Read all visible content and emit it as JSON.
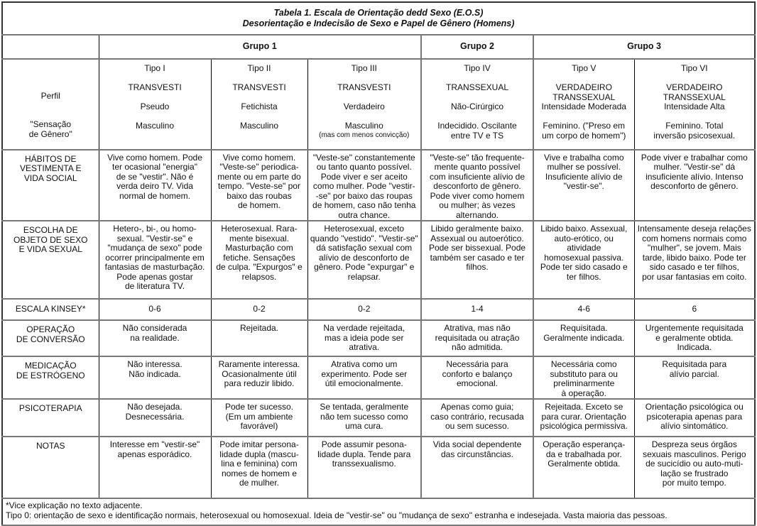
{
  "title": {
    "line1": "Tabela 1. Escala de Orientação dedd Sexo (E.O.S)",
    "line2": "Desorientação e Indecisão de Sexo e Papel de Gênero (Homens)"
  },
  "groups": [
    "Grupo 1",
    "Grupo 2",
    "Grupo 3"
  ],
  "perfil": {
    "label1": "Perfil",
    "label2": "\"Sensação\nde Gênero\"",
    "types": [
      {
        "tipo": "Tipo I",
        "name": "TRANSVESTI",
        "sub": "Pseudo",
        "sensation": "Masculino",
        "note": ""
      },
      {
        "tipo": "Tipo II",
        "name": "TRANSVESTI",
        "sub": "Fetichista",
        "sensation": "Masculino",
        "note": ""
      },
      {
        "tipo": "Tipo III",
        "name": "TRANSVESTI",
        "sub": "Verdadeiro",
        "sensation": "Masculino",
        "note": "(mas com menos convicção)"
      },
      {
        "tipo": "Tipo IV",
        "name": "TRANSSEXUAL",
        "sub": "Não-Cirúrgico",
        "sensation": "Indecidido. Oscilante\nentre TV e TS",
        "note": ""
      },
      {
        "tipo": "Tipo V",
        "name": "VERDADEIRO\nTRANSSEXUAL",
        "sub": "Intensidade Moderada",
        "sensation": "Feminino. (\"Preso em\num corpo de homem\")",
        "note": ""
      },
      {
        "tipo": "Tipo VI",
        "name": "VERDADEIRO\nTRANSSEXUAL",
        "sub": "Intensidade Alta",
        "sensation": "Feminino. Total\ninversão psicosexual.",
        "note": ""
      }
    ]
  },
  "rows": [
    {
      "label": "HÁBITOS DE\nVESTIMENTA E\nVIDA SOCIAL",
      "cells": [
        "Vive como homem. Pode\nter ocasional \"energia\"\nde se \"vestir\". Não é\nverda deiro TV. Vida\nnormal de homem.",
        "Vive como homem.\n\"Veste-se\" periodica-\nmente ou em parte do\ntempo. \"Veste-se\" por\nbaixo das roubas\nde homem.",
        "\"Veste-se\" constantemente\nou tanto quanto possível.\nPode viver e ser aceito\ncomo mulher. Pode \"vestir-\n-se\" por baixo das roupas\nde homem, caso não tenha\noutra chance.",
        "\"Veste-se\" tão frequente-\nmente quanto possível\ncom insuficiente alívio de\ndesconforto de gênero.\nPode viver como homem\nou mulher; às vezes\nalternando.",
        "Vive e trabalha como\nmulher se possível.\nInsuficiente alívio de\n\"vestir-se\".",
        "Pode viver e trabalhar como\nmulher. \"Vestir-se\" dá\ninsuficiente alívio. Intenso\ndesconforto de gênero."
      ]
    },
    {
      "label": "ESCOLHA DE\nOBJETO DE SEXO\nE VIDA SEXUAL",
      "cells": [
        "Hetero-, bi-, ou homo-\nsexual. \"Vestir-se\" e\n\"mudança de sexo\" pode\nocorrer principalmente em\nfantasias de masturbação.\nPode apenas gostar\nde literatura TV.",
        "Heterosexual. Rara-\nmente bisexual.\nMasturbação com\nfetiche. Sensações\nde culpa. \"Expurgos\" e\nrelapsos.",
        "Heterosexual, exceto\nquando \"vestido\". \"Vestir-se\"\ndá satisfação sexual com\nalívio de desconforto de\ngênero. Pode \"expurgar\" e\nrelapsar.",
        "Libido geralmente baixo.\nAssexual ou autoerótico.\nPode ser bissexual. Pode\ntambém ser casado e ter\nfilhos.",
        "Libido baixo. Assexual,\nauto-erótico, ou atividade\nhomosexual passiva.\nPode ter sido casado e\nter filhos.",
        "Intensamente deseja relações\ncom homens normais como\n\"mulher\", se jovem. Mais\ntarde, libido baixo. Pode ter\nsido casado e ter filhos,\npor usar fantasias em coito."
      ]
    },
    {
      "label": "ESCALA KINSEY*",
      "cells": [
        "0-6",
        "0-2",
        "0-2",
        "1-4",
        "4-6",
        "6"
      ]
    },
    {
      "label": "OPERAÇÃO\nDE CONVERSÃO",
      "cells": [
        "Não considerada\nna realidade.",
        "Rejeitada.",
        "Na verdade rejeitada,\nmas a ideia pode ser\natrativa.",
        "Atrativa, mas não\nrequisitada ou atração\nnão admitida.",
        "Requisitada.\nGeralmente indicada.",
        "Urgentemente requisitada\ne geralmente obtida.\nIndicada."
      ]
    },
    {
      "label": "MEDICAÇÃO\nDE ESTRÓGENO",
      "cells": [
        "Não interessa.\nNão indicada.",
        "Raramente interessa.\nOcasionalmente útil\npara reduzir libido.",
        "Atrativa como um\nexperimento. Pode ser\nútil emocionalmente.",
        "Necessária para\nconforto e balanço\nemocional.",
        "Necessária como\nsubstituto para ou\npreliminarmente\nà operação.",
        "Requisitada para\nalívio parcial."
      ]
    },
    {
      "label": "PSICOTERAPIA",
      "cells": [
        "Não desejada.\nDesnecessária.",
        "Pode ter sucesso.\n(Em um ambiente\nfavorável)",
        "Se tentada, geralmente\nnão tem sucesso como\numa cura.",
        "Apenas como guia;\ncaso contrário, recusada\nou sem sucesso.",
        "Rejeitada. Exceto se\npara curar. Orientação\npsicológica permissiva.",
        "Orientação psicológica ou\npsicoterapia apenas para\nalívio sintomático."
      ]
    },
    {
      "label": "NOTAS",
      "cells": [
        "Interesse em \"vestir-se\"\napenas esporádico.",
        "Pode imitar persona-\nlidade dupla (mascu-\nlina e feminina) com\nnomes de homem e\nde mulher.",
        "Pode assumir pesona-\nlidade dupla. Tende para\ntranssexualismo.",
        "Vida social dependente\ndas circunstâncias.",
        "Operação esperança-\nda e trabalhada por.\nGeralmente obtida.",
        "Despreza seus órgãos\nsexuais masculinos. Perigo\nde sucicídio ou auto-muti-\nlação se frustrado\npor muito tempo."
      ]
    }
  ],
  "footnotes": {
    "line1": "*Vice explicação no texto adjacente.",
    "line2": "Tipo 0: orientação de sexo e identificação normais, heterosexual ou homosexual. Ideia de \"vestir-se\" ou \"mudança de sexo\" estranha e indesejada. Vasta maioria das pessoas."
  }
}
